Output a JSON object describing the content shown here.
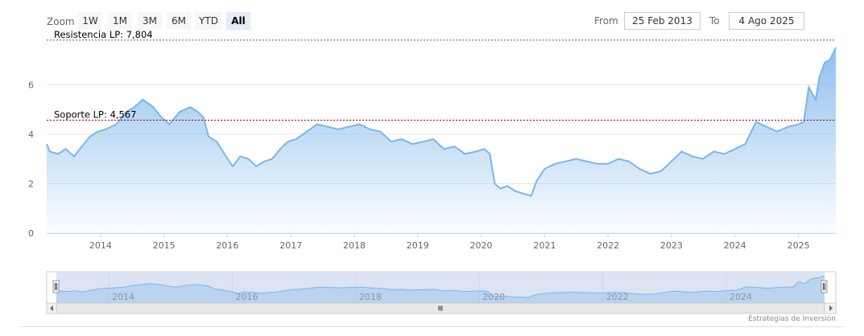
{
  "range_selector": {
    "zoom_label": "Zoom",
    "buttons": [
      "1W",
      "1M",
      "3M",
      "6M",
      "YTD",
      "All"
    ],
    "active": "All",
    "from_label": "From",
    "from_value": "25 Feb 2013",
    "to_label": "To",
    "to_value": "4 Ago 2025"
  },
  "credits": "Estrategias de Inversión",
  "colors": {
    "series_line": "#7cb5ec",
    "area_top": "#8ebde9",
    "resistance_line": "#2e7d32",
    "support_line": "#8b0000",
    "grid": "#e6e6e6",
    "navigator_mask": "#d6def0",
    "scrollbar": "#e8e8e8"
  },
  "chart_data": {
    "type": "area",
    "title": "",
    "xlabel": "",
    "ylabel": "",
    "ylim": [
      0,
      7.8
    ],
    "y_ticks": [
      "0",
      "2",
      "4",
      "6"
    ],
    "x_ticks": [
      "2014",
      "2015",
      "2016",
      "2017",
      "2018",
      "2019",
      "2020",
      "2021",
      "2022",
      "2023",
      "2024",
      "2025"
    ],
    "xlim": [
      "2013-02-25",
      "2025-08-04"
    ],
    "grid": true,
    "legend": "none",
    "series": [
      {
        "x": [
          "2013-02-25",
          "2013-03-15",
          "2013-05-01",
          "2013-06-15",
          "2013-08-01",
          "2013-09-15",
          "2013-11-01",
          "2013-12-15",
          "2014-02-01",
          "2014-04-01",
          "2014-06-01",
          "2014-07-15",
          "2014-09-01",
          "2014-11-01",
          "2014-12-15",
          "2015-02-01",
          "2015-04-01",
          "2015-06-01",
          "2015-07-15",
          "2015-08-15",
          "2015-09-15",
          "2015-11-01",
          "2015-12-15",
          "2016-02-01",
          "2016-03-15",
          "2016-05-01",
          "2016-06-15",
          "2016-08-01",
          "2016-09-15",
          "2016-11-01",
          "2016-12-15",
          "2017-02-01",
          "2017-04-01",
          "2017-06-01",
          "2017-08-01",
          "2017-10-01",
          "2017-12-01",
          "2018-02-01",
          "2018-04-01",
          "2018-06-01",
          "2018-08-01",
          "2018-10-01",
          "2018-12-01",
          "2019-02-01",
          "2019-04-01",
          "2019-06-01",
          "2019-08-01",
          "2019-10-01",
          "2019-12-01",
          "2020-01-20",
          "2020-02-20",
          "2020-03-20",
          "2020-04-20",
          "2020-06-01",
          "2020-07-15",
          "2020-09-01",
          "2020-10-15",
          "2020-11-15",
          "2021-01-01",
          "2021-03-01",
          "2021-05-01",
          "2021-07-01",
          "2021-09-01",
          "2021-11-01",
          "2022-01-01",
          "2022-03-01",
          "2022-05-01",
          "2022-07-01",
          "2022-09-01",
          "2022-11-01",
          "2023-01-01",
          "2023-03-01",
          "2023-05-01",
          "2023-07-01",
          "2023-09-01",
          "2023-11-01",
          "2024-01-01",
          "2024-03-01",
          "2024-05-01",
          "2024-07-01",
          "2024-09-01",
          "2024-11-01",
          "2025-01-01",
          "2025-02-01",
          "2025-03-01",
          "2025-04-10",
          "2025-05-01",
          "2025-06-01",
          "2025-07-01",
          "2025-08-04"
        ],
        "values": [
          3.6,
          3.3,
          3.2,
          3.4,
          3.1,
          3.5,
          3.9,
          4.1,
          4.2,
          4.4,
          4.9,
          5.1,
          5.4,
          5.1,
          4.7,
          4.4,
          4.9,
          5.1,
          4.9,
          4.7,
          3.9,
          3.7,
          3.2,
          2.7,
          3.1,
          3.0,
          2.7,
          2.9,
          3.0,
          3.4,
          3.7,
          3.8,
          4.1,
          4.4,
          4.3,
          4.2,
          4.3,
          4.4,
          4.2,
          4.1,
          3.7,
          3.8,
          3.6,
          3.7,
          3.8,
          3.4,
          3.5,
          3.2,
          3.3,
          3.4,
          3.2,
          2.0,
          1.8,
          1.9,
          1.7,
          1.6,
          1.5,
          2.1,
          2.6,
          2.8,
          2.9,
          3.0,
          2.9,
          2.8,
          2.8,
          3.0,
          2.9,
          2.6,
          2.4,
          2.5,
          2.9,
          3.3,
          3.1,
          3.0,
          3.3,
          3.2,
          3.4,
          3.6,
          4.5,
          4.3,
          4.1,
          4.3,
          4.4,
          4.5,
          5.9,
          5.4,
          6.3,
          6.9,
          7.0,
          7.5
        ]
      }
    ],
    "annotations": [
      {
        "label": "Resistencia LP: 7,804",
        "y": 7.804
      },
      {
        "label": "Soporte LP: 4,567",
        "y": 4.567
      }
    ],
    "navigator": {
      "x_ticks": [
        "2014",
        "2016",
        "2018",
        "2020",
        "2022",
        "2024"
      ]
    }
  }
}
